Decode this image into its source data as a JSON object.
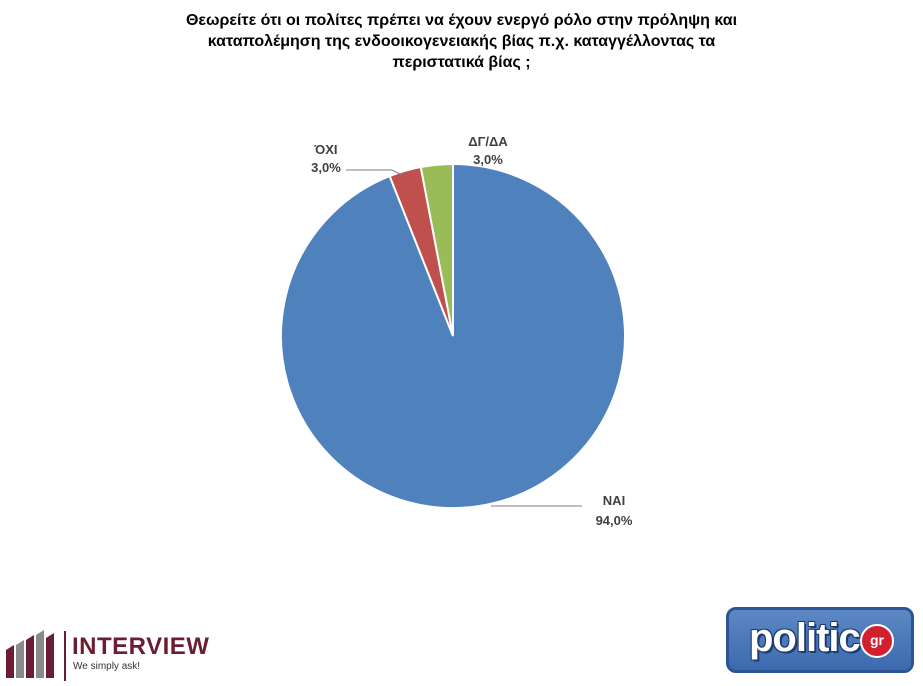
{
  "chart_data": {
    "type": "pie",
    "title_lines": [
      "Θεωρείτε ότι οι πολίτες πρέπει να έχουν ενεργό ρόλο στην πρόληψη και",
      "καταπολέμηση της ενδοοικογενειακής βίας π.χ. καταγγέλλοντας τα",
      "περιστατικά βίας  ;"
    ],
    "slices": [
      {
        "label": "ΝΑΙ",
        "value": 94.0,
        "value_label": "94,0%",
        "color": "#4f81bd"
      },
      {
        "label": "ΌΧΙ",
        "value": 3.0,
        "value_label": "3,0%",
        "color": "#c0504d"
      },
      {
        "label": "ΔΓ/ΔΑ",
        "value": 3.0,
        "value_label": "3,0%",
        "color": "#9bbb59"
      }
    ],
    "start_angle_deg": 0,
    "direction": "clockwise",
    "legend": "none",
    "label_color": "#404040",
    "leader_line_color": "#7f7f7f"
  },
  "logos": {
    "interview": {
      "name": "INTERVIEW",
      "tagline": "We simply ask!",
      "color": "#6b1d33"
    },
    "politic": {
      "word": "politic",
      "suffix": "gr",
      "color": "#3c6aae",
      "badge_color": "#d3202f"
    }
  }
}
